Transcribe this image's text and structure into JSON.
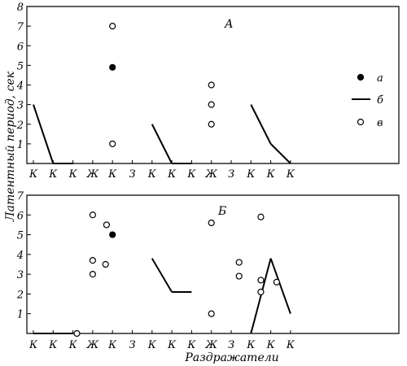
{
  "chart_data": [
    {
      "type": "scatter",
      "panel_label": "А",
      "ylim": [
        0,
        8
      ],
      "y_ticks": [
        "1",
        "2",
        "3",
        "4",
        "5",
        "6",
        "7",
        "8"
      ],
      "x_labels": [
        "К",
        "К",
        "К",
        "Ж",
        "К",
        "З",
        "К",
        "К",
        "К",
        "Ж",
        "З",
        "К",
        "К",
        "К"
      ],
      "series": [
        {
          "name": "а",
          "marker": "filled",
          "points": [
            [
              5,
              4.9
            ]
          ]
        },
        {
          "name": "б",
          "marker": "line",
          "segments": [
            [
              [
                1,
                3
              ],
              [
                2,
                0
              ]
            ],
            [
              [
                2,
                0
              ],
              [
                3,
                0
              ]
            ],
            [
              [
                7,
                2
              ],
              [
                8,
                0
              ]
            ],
            [
              [
                8,
                0
              ],
              [
                9,
                0
              ]
            ],
            [
              [
                12,
                3
              ],
              [
                13,
                1
              ]
            ],
            [
              [
                13,
                1
              ],
              [
                14,
                0
              ]
            ]
          ]
        },
        {
          "name": "в",
          "marker": "open",
          "points": [
            [
              5,
              7
            ],
            [
              5,
              1
            ],
            [
              10,
              4
            ],
            [
              10,
              3
            ],
            [
              10,
              2
            ]
          ]
        }
      ],
      "legend": [
        {
          "key": "а",
          "marker": "filled"
        },
        {
          "key": "б",
          "marker": "line"
        },
        {
          "key": "в",
          "marker": "open"
        }
      ]
    },
    {
      "type": "scatter",
      "panel_label": "Б",
      "ylim": [
        0,
        7
      ],
      "y_ticks": [
        "1",
        "2",
        "3",
        "4",
        "5",
        "6",
        "7"
      ],
      "x_labels": [
        "К",
        "К",
        "К",
        "Ж",
        "К",
        "З",
        "К",
        "К",
        "К",
        "Ж",
        "З",
        "К",
        "К",
        "К"
      ],
      "series": [
        {
          "name": "а",
          "marker": "filled",
          "points": [
            [
              5,
              5
            ]
          ]
        },
        {
          "name": "б",
          "marker": "line",
          "segments": [
            [
              [
                1,
                0
              ],
              [
                3,
                0
              ]
            ],
            [
              [
                7,
                3.8
              ],
              [
                8,
                2.1
              ]
            ],
            [
              [
                8,
                2.1
              ],
              [
                9,
                2.1
              ]
            ],
            [
              [
                12,
                0
              ],
              [
                13,
                3.8
              ]
            ],
            [
              [
                13,
                3.8
              ],
              [
                14,
                1
              ]
            ]
          ]
        },
        {
          "name": "в",
          "marker": "open",
          "points": [
            [
              4,
              6
            ],
            [
              4.7,
              5.5
            ],
            [
              4,
              3.7
            ],
            [
              4.65,
              3.5
            ],
            [
              4,
              3
            ],
            [
              3.2,
              0
            ],
            [
              10,
              5.6
            ],
            [
              10,
              1
            ],
            [
              11.4,
              3.6
            ],
            [
              11.4,
              2.9
            ],
            [
              12.5,
              5.9
            ],
            [
              12.5,
              2.7
            ],
            [
              12.5,
              2.1
            ],
            [
              13.3,
              2.6
            ]
          ]
        }
      ]
    }
  ],
  "ylabel": "Латентный период, сек",
  "xlabel": "Раздражатели"
}
